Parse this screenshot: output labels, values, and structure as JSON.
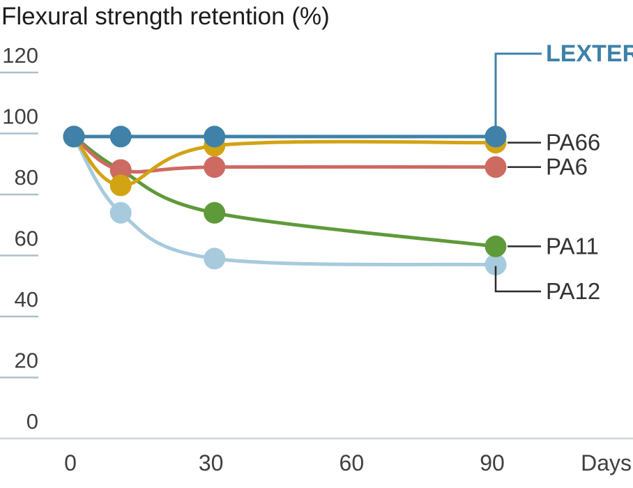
{
  "title": "Flexural strength retention (%)",
  "chart_data": {
    "type": "line",
    "title": "Flexural strength retention (%)",
    "x": [
      0,
      10,
      30,
      90
    ],
    "xlabel": "Days",
    "x_ticks": [
      0,
      30,
      60,
      90
    ],
    "y_ticks": [
      120,
      100,
      80,
      60,
      40,
      20,
      0
    ],
    "ylim": [
      0,
      120
    ],
    "grid": "short-left-tick-underlines",
    "legend_position": "direct-right-labels",
    "series": [
      {
        "name": "PA12",
        "color": "#a7cadd",
        "values": [
          99,
          74,
          59,
          57
        ],
        "callout": "elbow-down",
        "highlight": false
      },
      {
        "name": "PA11",
        "color": "#5f9a3a",
        "values": [
          99,
          88,
          74,
          63
        ],
        "callout": "right",
        "highlight": false
      },
      {
        "name": "PA6",
        "color": "#cd6a62",
        "values": [
          99,
          88,
          89,
          89
        ],
        "callout": "right",
        "highlight": false
      },
      {
        "name": "PA66",
        "color": "#d2a313",
        "values": [
          99,
          83,
          96,
          97
        ],
        "callout": "right",
        "highlight": false
      },
      {
        "name": "LEXTER",
        "color": "#3f81a8",
        "values": [
          99,
          99,
          99,
          99
        ],
        "callout": "elbow-up",
        "highlight": true
      }
    ]
  },
  "colors": {
    "axis_line": "#ccd5da",
    "tick_line": "#adc0cb",
    "tick_text": "#3f3f3f",
    "series_label_text": "#333333",
    "connector": "#2a2a2a",
    "title_text": "#1c1c1c"
  }
}
